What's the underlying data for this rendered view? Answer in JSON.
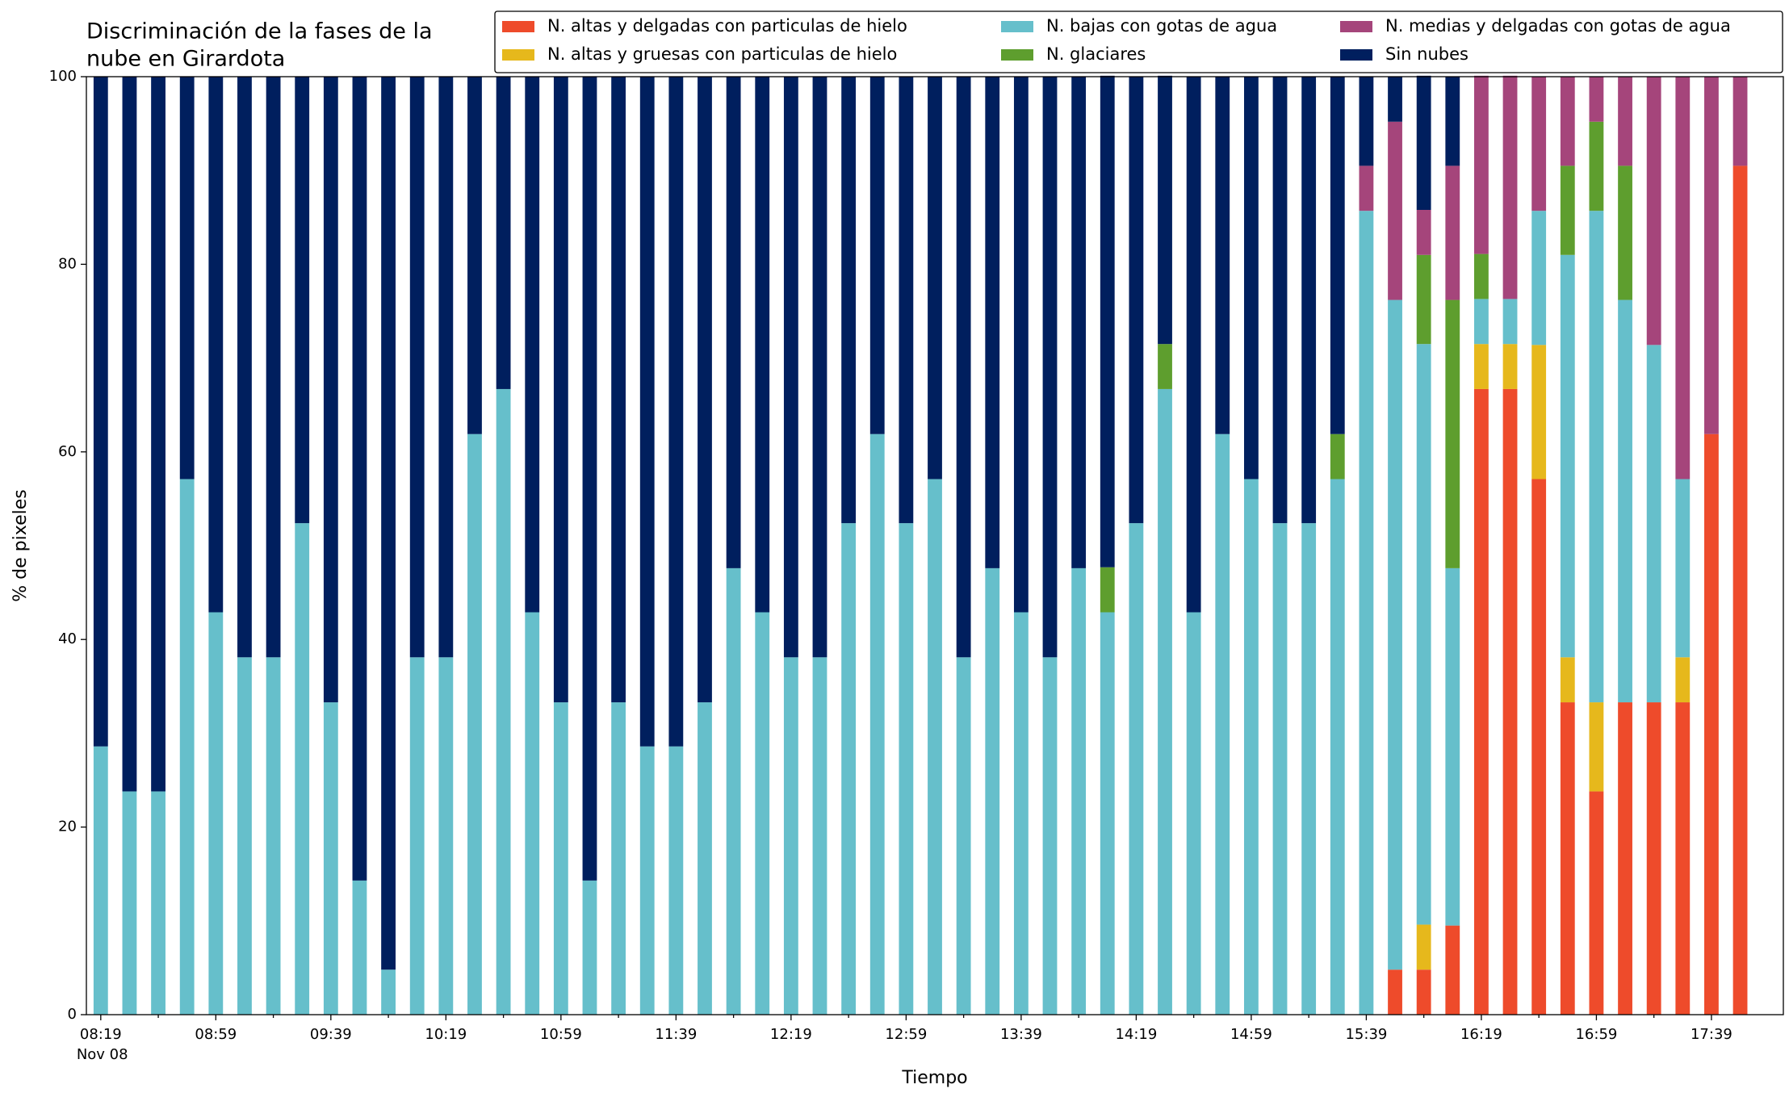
{
  "chart_data": {
    "type": "stacked_bar",
    "title": [
      "Discriminación de la fases de la",
      "nube en Girardota"
    ],
    "xlabel": "Tiempo",
    "ylabel": "% de pixeles",
    "x_sublabel": "Nov 08",
    "categories": [
      "08:19",
      null,
      null,
      null,
      "08:59",
      null,
      null,
      null,
      "09:39",
      null,
      null,
      null,
      "10:19",
      null,
      null,
      null,
      "10:59",
      null,
      null,
      null,
      "11:39",
      null,
      null,
      null,
      "12:19",
      null,
      null,
      null,
      "12:59",
      null,
      null,
      null,
      "13:39",
      null,
      null,
      null,
      "14:19",
      null,
      null,
      null,
      "14:59",
      null,
      null,
      null,
      "15:39",
      null,
      null,
      null,
      "16:19",
      null,
      null,
      null,
      "16:59",
      null,
      null,
      null,
      "17:39",
      null
    ],
    "ylim": [
      0,
      100
    ],
    "yticks": [
      0,
      20,
      40,
      60,
      80,
      100
    ],
    "legend": "top",
    "series": [
      {
        "name": "N. altas y delgadas con particulas de hielo",
        "color": "#ee4b2b",
        "values": [
          0,
          0,
          0,
          0,
          0,
          0,
          0,
          0,
          0,
          0,
          0,
          0,
          0,
          0,
          0,
          0,
          0,
          0,
          0,
          0,
          0,
          0,
          0,
          0,
          0,
          0,
          0,
          0,
          0,
          0,
          0,
          0,
          0,
          0,
          0,
          0,
          0,
          0,
          0,
          0,
          0,
          0,
          0,
          0,
          0,
          4.8,
          4.8,
          9.5,
          66.7,
          66.7,
          57.1,
          33.3,
          23.8,
          33.3,
          33.3,
          33.3,
          61.9,
          90.5
        ]
      },
      {
        "name": "N. altas y gruesas con particulas de hielo",
        "color": "#e6b81c",
        "values": [
          0,
          0,
          0,
          0,
          0,
          0,
          0,
          0,
          0,
          0,
          0,
          0,
          0,
          0,
          0,
          0,
          0,
          0,
          0,
          0,
          0,
          0,
          0,
          0,
          0,
          0,
          0,
          0,
          0,
          0,
          0,
          0,
          0,
          0,
          0,
          0,
          0,
          0,
          0,
          0,
          0,
          0,
          0,
          0,
          0,
          0,
          4.8,
          0,
          4.8,
          4.8,
          14.3,
          4.8,
          9.5,
          0,
          0,
          4.8,
          0,
          0
        ]
      },
      {
        "name": "N. bajas con gotas de agua",
        "color": "#66bfcb",
        "values": [
          28.6,
          23.8,
          23.8,
          57.1,
          42.9,
          38.1,
          38.1,
          52.4,
          33.3,
          14.3,
          4.8,
          38.1,
          38.1,
          61.9,
          66.7,
          42.9,
          33.3,
          14.3,
          33.3,
          28.6,
          28.6,
          33.3,
          47.6,
          42.9,
          38.1,
          38.1,
          52.4,
          61.9,
          52.4,
          57.1,
          38.1,
          47.6,
          42.9,
          38.1,
          47.6,
          42.9,
          52.4,
          66.7,
          42.9,
          61.9,
          57.1,
          52.4,
          52.4,
          57.1,
          85.7,
          71.4,
          61.9,
          38.1,
          4.8,
          4.8,
          14.3,
          42.9,
          52.4,
          42.9,
          38.1,
          19.0,
          0,
          0
        ]
      },
      {
        "name": "N. glaciares",
        "color": "#5e9e2e",
        "values": [
          0,
          0,
          0,
          0,
          0,
          0,
          0,
          0,
          0,
          0,
          0,
          0,
          0,
          0,
          0,
          0,
          0,
          0,
          0,
          0,
          0,
          0,
          0,
          0,
          0,
          0,
          0,
          0,
          0,
          0,
          0,
          0,
          0,
          0,
          0,
          4.8,
          0,
          4.8,
          0,
          0,
          0,
          0,
          0,
          4.8,
          0,
          0,
          9.5,
          28.6,
          4.8,
          0,
          0,
          9.5,
          9.5,
          14.3,
          0,
          0,
          0,
          0
        ]
      },
      {
        "name": "N. medias y delgadas con gotas de agua",
        "color": "#a5457b",
        "values": [
          0,
          0,
          0,
          0,
          0,
          0,
          0,
          0,
          0,
          0,
          0,
          0,
          0,
          0,
          0,
          0,
          0,
          0,
          0,
          0,
          0,
          0,
          0,
          0,
          0,
          0,
          0,
          0,
          0,
          0,
          0,
          0,
          0,
          0,
          0,
          0,
          0,
          0,
          0,
          0,
          0,
          0,
          0,
          0,
          4.8,
          19.0,
          4.8,
          14.3,
          19.0,
          23.8,
          14.3,
          9.5,
          4.8,
          9.5,
          28.6,
          42.9,
          38.1,
          9.5
        ]
      },
      {
        "name": "Sin nubes",
        "color": "#001f5e",
        "values": [
          71.4,
          76.2,
          76.2,
          42.9,
          57.1,
          61.9,
          61.9,
          47.6,
          66.7,
          85.7,
          95.2,
          61.9,
          61.9,
          38.1,
          33.3,
          57.1,
          66.7,
          85.7,
          66.7,
          71.4,
          71.4,
          66.7,
          52.4,
          57.1,
          61.9,
          61.9,
          47.6,
          38.1,
          47.6,
          42.9,
          61.9,
          52.4,
          57.1,
          61.9,
          52.4,
          52.4,
          47.6,
          28.6,
          57.1,
          38.1,
          42.9,
          47.6,
          47.6,
          38.1,
          9.5,
          4.8,
          14.3,
          9.5,
          0,
          0,
          0,
          0,
          0,
          0,
          0,
          0,
          0,
          0
        ]
      }
    ]
  }
}
